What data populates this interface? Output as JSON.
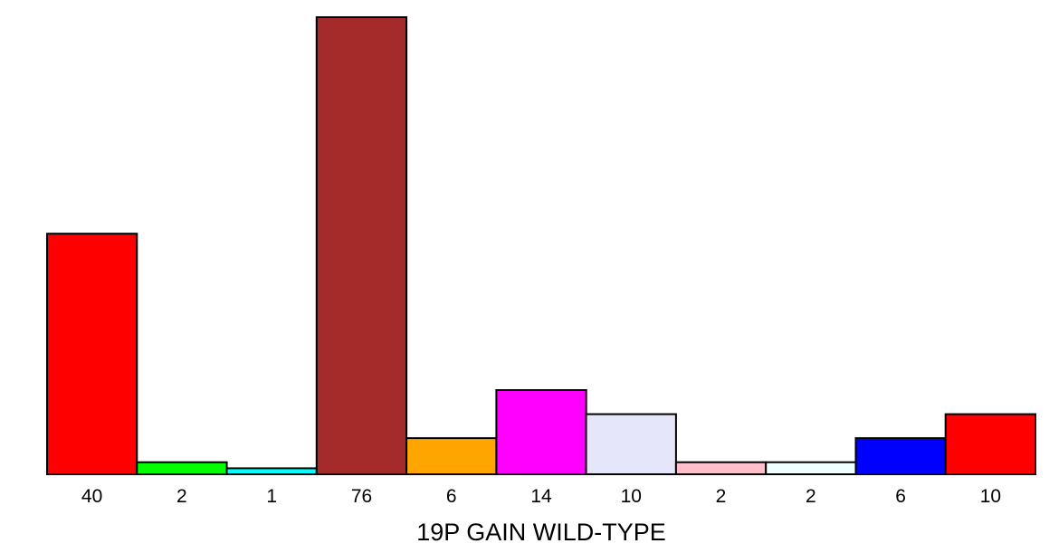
{
  "chart_data": {
    "type": "bar",
    "categories": [
      "40",
      "2",
      "1",
      "76",
      "6",
      "14",
      "10",
      "2",
      "2",
      "6",
      "10"
    ],
    "values": [
      40,
      2,
      1,
      76,
      6,
      14,
      10,
      2,
      2,
      6,
      10
    ],
    "colors": [
      "#ff0000",
      "#00ff00",
      "#00ffff",
      "#a52a2a",
      "#ffa500",
      "#ff00ff",
      "#e6e6fa",
      "#ffc0cb",
      "#f0ffff",
      "#0000ff",
      "#ff0000"
    ],
    "xlabel": "19P GAIN WILD-TYPE",
    "ylim": [
      0,
      76
    ],
    "grid": false,
    "legend": "none"
  }
}
